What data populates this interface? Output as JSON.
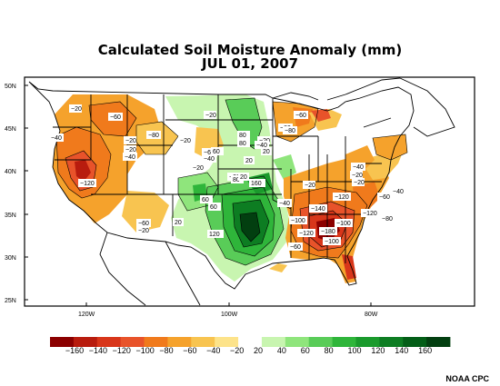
{
  "title": "Calculated Soil Moisture Anomaly (mm)",
  "date": "JUL 01, 2007",
  "credit": "NOAA CPC",
  "lat_labels": [
    "50N",
    "45N",
    "40N",
    "35N",
    "30N",
    "25N"
  ],
  "lon_labels": [
    "120W",
    "100W",
    "80W"
  ],
  "colorbar": {
    "labels": [
      "−160",
      "−140",
      "−120",
      "−100",
      "−80",
      "−60",
      "−40",
      "−20",
      "20",
      "40",
      "60",
      "80",
      "100",
      "120",
      "140",
      "160"
    ],
    "colors": [
      "#8b0000",
      "#b81c0e",
      "#d8361a",
      "#e8532a",
      "#f07a1c",
      "#f5a22c",
      "#f8c450",
      "#fde38a",
      "#ffffff",
      "#c8f5b0",
      "#8fe57c",
      "#59cc58",
      "#2fb53a",
      "#1a9a2c",
      "#0d7d22",
      "#035e17",
      "#023f10"
    ]
  },
  "contour_labels": [
    "−20",
    "−60",
    "−40",
    "−20",
    "−80",
    "−20",
    "−40",
    "−20",
    "−120",
    "−20",
    "−60",
    "−40",
    "−20",
    "80",
    "80",
    "60",
    "−20",
    "20",
    "−60",
    "−80",
    "20",
    "−40",
    "−20",
    "60",
    "60",
    "80",
    "20",
    "160",
    "−40",
    "−40",
    "−20",
    "−20",
    "−60",
    "−40",
    "−120",
    "−140",
    "−120",
    "−100",
    "−100",
    "−180",
    "−100",
    "−120",
    "−80",
    "−60",
    "20",
    "120",
    "−80",
    "−20",
    "−20",
    "−60"
  ]
}
